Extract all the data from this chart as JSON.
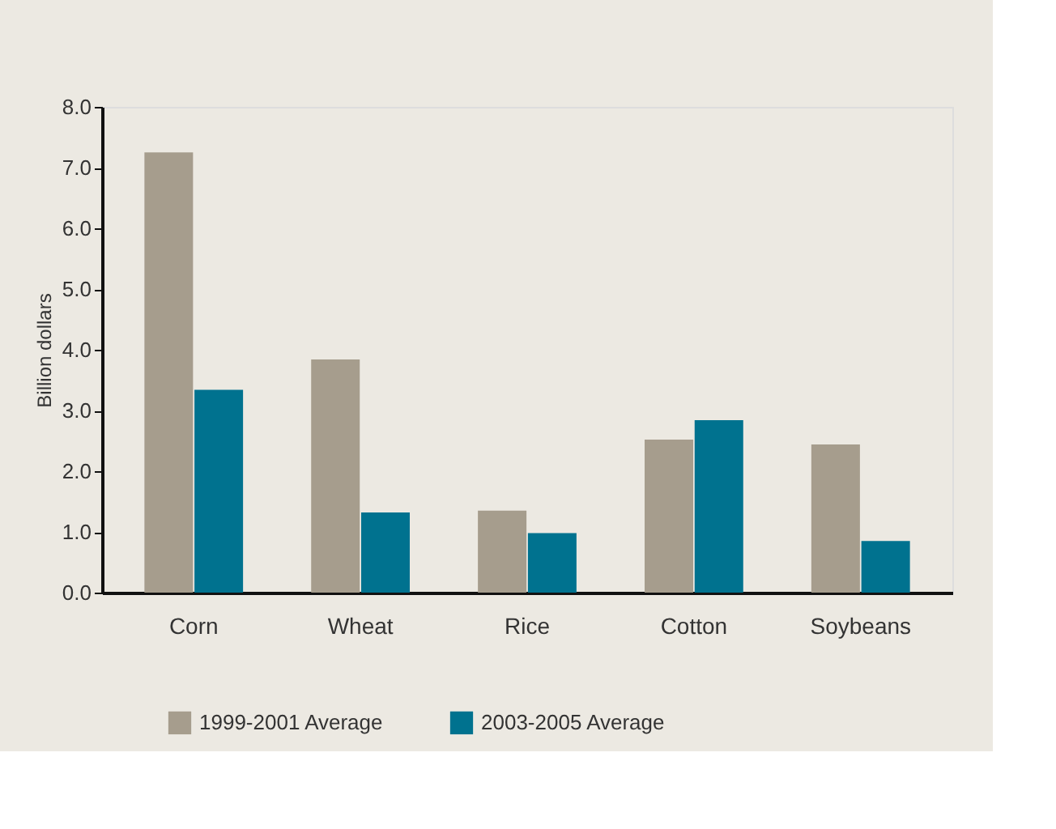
{
  "chart_data": {
    "type": "bar",
    "ylabel": "Billion dollars",
    "categories": [
      "Corn",
      "Wheat",
      "Rice",
      "Cotton",
      "Soybeans"
    ],
    "series": [
      {
        "name": "1999-2001 Average",
        "color": "#a69d8d",
        "values": [
          7.25,
          3.84,
          1.35,
          2.52,
          2.44
        ]
      },
      {
        "name": "2003-2005 Average",
        "color": "#00728f",
        "values": [
          3.34,
          1.32,
          0.98,
          2.84,
          0.85
        ]
      }
    ],
    "ylim": [
      0,
      8
    ],
    "yticks": [
      {
        "value": 0,
        "label": "0.0"
      },
      {
        "value": 1,
        "label": "1.0"
      },
      {
        "value": 2,
        "label": "2.0"
      },
      {
        "value": 3,
        "label": "3.0"
      },
      {
        "value": 4,
        "label": "4.0"
      },
      {
        "value": 5,
        "label": "5.0"
      },
      {
        "value": 6,
        "label": "6.0"
      },
      {
        "value": 7,
        "label": "7.0"
      },
      {
        "value": 8,
        "label": "8.0"
      }
    ],
    "grid": false,
    "legend": "bottom left"
  }
}
